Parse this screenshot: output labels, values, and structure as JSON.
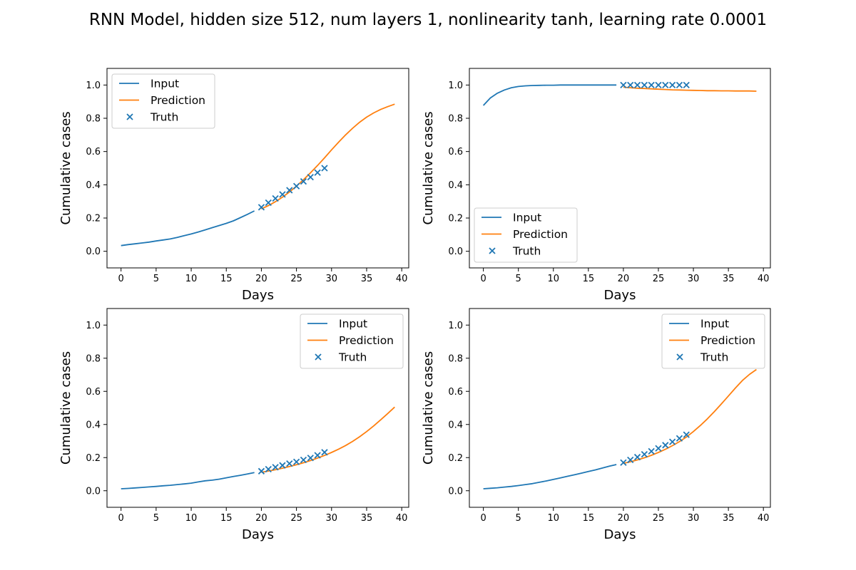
{
  "title": "RNN Model, hidden size 512, num layers 1, nonlinearity tanh, learning rate 0.0001",
  "colors": {
    "input": "#1f77b4",
    "prediction": "#ff7f0e",
    "truth": "#1f77b4"
  },
  "chart_data": [
    {
      "type": "line",
      "xlabel": "Days",
      "ylabel": "Cumulative cases",
      "xlim": [
        -2,
        41
      ],
      "ylim": [
        -0.1,
        1.1
      ],
      "xticks": [
        0,
        5,
        10,
        15,
        20,
        25,
        30,
        35,
        40
      ],
      "yticks": [
        "0.0",
        "0.2",
        "0.4",
        "0.6",
        "0.8",
        "1.0"
      ],
      "legend_position": "upper-left",
      "legend": [
        "Input",
        "Prediction",
        "Truth"
      ],
      "series": [
        {
          "name": "Input",
          "kind": "line",
          "x": [
            0,
            1,
            2,
            3,
            4,
            5,
            6,
            7,
            8,
            9,
            10,
            11,
            12,
            13,
            14,
            15,
            16,
            17,
            18,
            19
          ],
          "y": [
            0.034,
            0.04,
            0.045,
            0.05,
            0.055,
            0.062,
            0.068,
            0.074,
            0.083,
            0.094,
            0.104,
            0.116,
            0.129,
            0.142,
            0.155,
            0.168,
            0.183,
            0.202,
            0.222,
            0.243
          ]
        },
        {
          "name": "Prediction",
          "kind": "line",
          "x": [
            20,
            21,
            22,
            23,
            24,
            25,
            26,
            27,
            28,
            29,
            30,
            31,
            32,
            33,
            34,
            35,
            36,
            37,
            38,
            39
          ],
          "y": [
            0.255,
            0.275,
            0.298,
            0.325,
            0.357,
            0.392,
            0.43,
            0.472,
            0.516,
            0.562,
            0.61,
            0.656,
            0.7,
            0.74,
            0.776,
            0.807,
            0.832,
            0.853,
            0.87,
            0.885
          ]
        },
        {
          "name": "Truth",
          "kind": "scatter",
          "x": [
            20,
            21,
            22,
            23,
            24,
            25,
            26,
            27,
            28,
            29
          ],
          "y": [
            0.265,
            0.292,
            0.318,
            0.342,
            0.367,
            0.392,
            0.42,
            0.446,
            0.473,
            0.5
          ]
        }
      ]
    },
    {
      "type": "line",
      "xlabel": "Days",
      "ylabel": "Cumulative cases",
      "xlim": [
        -2,
        41
      ],
      "ylim": [
        -0.1,
        1.1
      ],
      "xticks": [
        0,
        5,
        10,
        15,
        20,
        25,
        30,
        35,
        40
      ],
      "yticks": [
        "0.0",
        "0.2",
        "0.4",
        "0.6",
        "0.8",
        "1.0"
      ],
      "legend_position": "lower-left",
      "legend": [
        "Input",
        "Prediction",
        "Truth"
      ],
      "series": [
        {
          "name": "Input",
          "kind": "line",
          "x": [
            0,
            1,
            2,
            3,
            4,
            5,
            6,
            7,
            8,
            9,
            10,
            11,
            12,
            13,
            14,
            15,
            16,
            17,
            18,
            19
          ],
          "y": [
            0.877,
            0.922,
            0.951,
            0.97,
            0.984,
            0.991,
            0.995,
            0.997,
            0.998,
            0.999,
            0.999,
            1.0,
            1.0,
            1.0,
            1.0,
            1.0,
            1.0,
            1.0,
            1.0,
            1.0
          ]
        },
        {
          "name": "Prediction",
          "kind": "line",
          "x": [
            20,
            21,
            22,
            23,
            24,
            25,
            26,
            27,
            28,
            29,
            30,
            31,
            32,
            33,
            34,
            35,
            36,
            37,
            38,
            39
          ],
          "y": [
            0.987,
            0.984,
            0.981,
            0.979,
            0.977,
            0.975,
            0.973,
            0.971,
            0.97,
            0.969,
            0.968,
            0.967,
            0.966,
            0.966,
            0.965,
            0.965,
            0.964,
            0.964,
            0.964,
            0.963
          ]
        },
        {
          "name": "Truth",
          "kind": "scatter",
          "x": [
            20,
            21,
            22,
            23,
            24,
            25,
            26,
            27,
            28,
            29
          ],
          "y": [
            1.0,
            1.0,
            1.0,
            1.0,
            1.0,
            1.0,
            1.0,
            1.0,
            1.0,
            1.0
          ]
        }
      ]
    },
    {
      "type": "line",
      "xlabel": "Days",
      "ylabel": "Cumulative cases",
      "xlim": [
        -2,
        41
      ],
      "ylim": [
        -0.1,
        1.1
      ],
      "xticks": [
        0,
        5,
        10,
        15,
        20,
        25,
        30,
        35,
        40
      ],
      "yticks": [
        "0.0",
        "0.2",
        "0.4",
        "0.6",
        "0.8",
        "1.0"
      ],
      "legend_position": "upper-right",
      "legend": [
        "Input",
        "Prediction",
        "Truth"
      ],
      "series": [
        {
          "name": "Input",
          "kind": "line",
          "x": [
            0,
            1,
            2,
            3,
            4,
            5,
            6,
            7,
            8,
            9,
            10,
            11,
            12,
            13,
            14,
            15,
            16,
            17,
            18,
            19
          ],
          "y": [
            0.012,
            0.014,
            0.017,
            0.02,
            0.023,
            0.026,
            0.03,
            0.033,
            0.037,
            0.041,
            0.046,
            0.053,
            0.06,
            0.064,
            0.07,
            0.078,
            0.086,
            0.093,
            0.101,
            0.11
          ]
        },
        {
          "name": "Prediction",
          "kind": "line",
          "x": [
            20,
            21,
            22,
            23,
            24,
            25,
            26,
            27,
            28,
            29,
            30,
            31,
            32,
            33,
            34,
            35,
            36,
            37,
            38,
            39
          ],
          "y": [
            0.111,
            0.119,
            0.127,
            0.136,
            0.146,
            0.157,
            0.169,
            0.182,
            0.197,
            0.213,
            0.231,
            0.251,
            0.273,
            0.298,
            0.326,
            0.357,
            0.391,
            0.428,
            0.466,
            0.505
          ]
        },
        {
          "name": "Truth",
          "kind": "scatter",
          "x": [
            20,
            21,
            22,
            23,
            24,
            25,
            26,
            27,
            28,
            29
          ],
          "y": [
            0.118,
            0.13,
            0.142,
            0.153,
            0.164,
            0.174,
            0.186,
            0.198,
            0.214,
            0.232
          ]
        }
      ]
    },
    {
      "type": "line",
      "xlabel": "Days",
      "ylabel": "Cumulative cases",
      "xlim": [
        -2,
        41
      ],
      "ylim": [
        -0.1,
        1.1
      ],
      "xticks": [
        0,
        5,
        10,
        15,
        20,
        25,
        30,
        35,
        40
      ],
      "yticks": [
        "0.0",
        "0.2",
        "0.4",
        "0.6",
        "0.8",
        "1.0"
      ],
      "legend_position": "upper-right",
      "legend": [
        "Input",
        "Prediction",
        "Truth"
      ],
      "series": [
        {
          "name": "Input",
          "kind": "line",
          "x": [
            0,
            1,
            2,
            3,
            4,
            5,
            6,
            7,
            8,
            9,
            10,
            11,
            12,
            13,
            14,
            15,
            16,
            17,
            18,
            19
          ],
          "y": [
            0.012,
            0.015,
            0.018,
            0.022,
            0.026,
            0.031,
            0.037,
            0.043,
            0.051,
            0.059,
            0.068,
            0.077,
            0.087,
            0.096,
            0.106,
            0.116,
            0.126,
            0.137,
            0.148,
            0.158
          ]
        },
        {
          "name": "Prediction",
          "kind": "line",
          "x": [
            20,
            21,
            22,
            23,
            24,
            25,
            26,
            27,
            28,
            29,
            30,
            31,
            32,
            33,
            34,
            35,
            36,
            37,
            38,
            39
          ],
          "y": [
            0.165,
            0.175,
            0.186,
            0.199,
            0.214,
            0.231,
            0.25,
            0.272,
            0.296,
            0.324,
            0.357,
            0.394,
            0.434,
            0.478,
            0.524,
            0.572,
            0.62,
            0.665,
            0.702,
            0.732
          ]
        },
        {
          "name": "Truth",
          "kind": "scatter",
          "x": [
            20,
            21,
            22,
            23,
            24,
            25,
            26,
            27,
            28,
            29
          ],
          "y": [
            0.17,
            0.186,
            0.203,
            0.22,
            0.238,
            0.256,
            0.275,
            0.295,
            0.316,
            0.338
          ]
        }
      ]
    }
  ]
}
